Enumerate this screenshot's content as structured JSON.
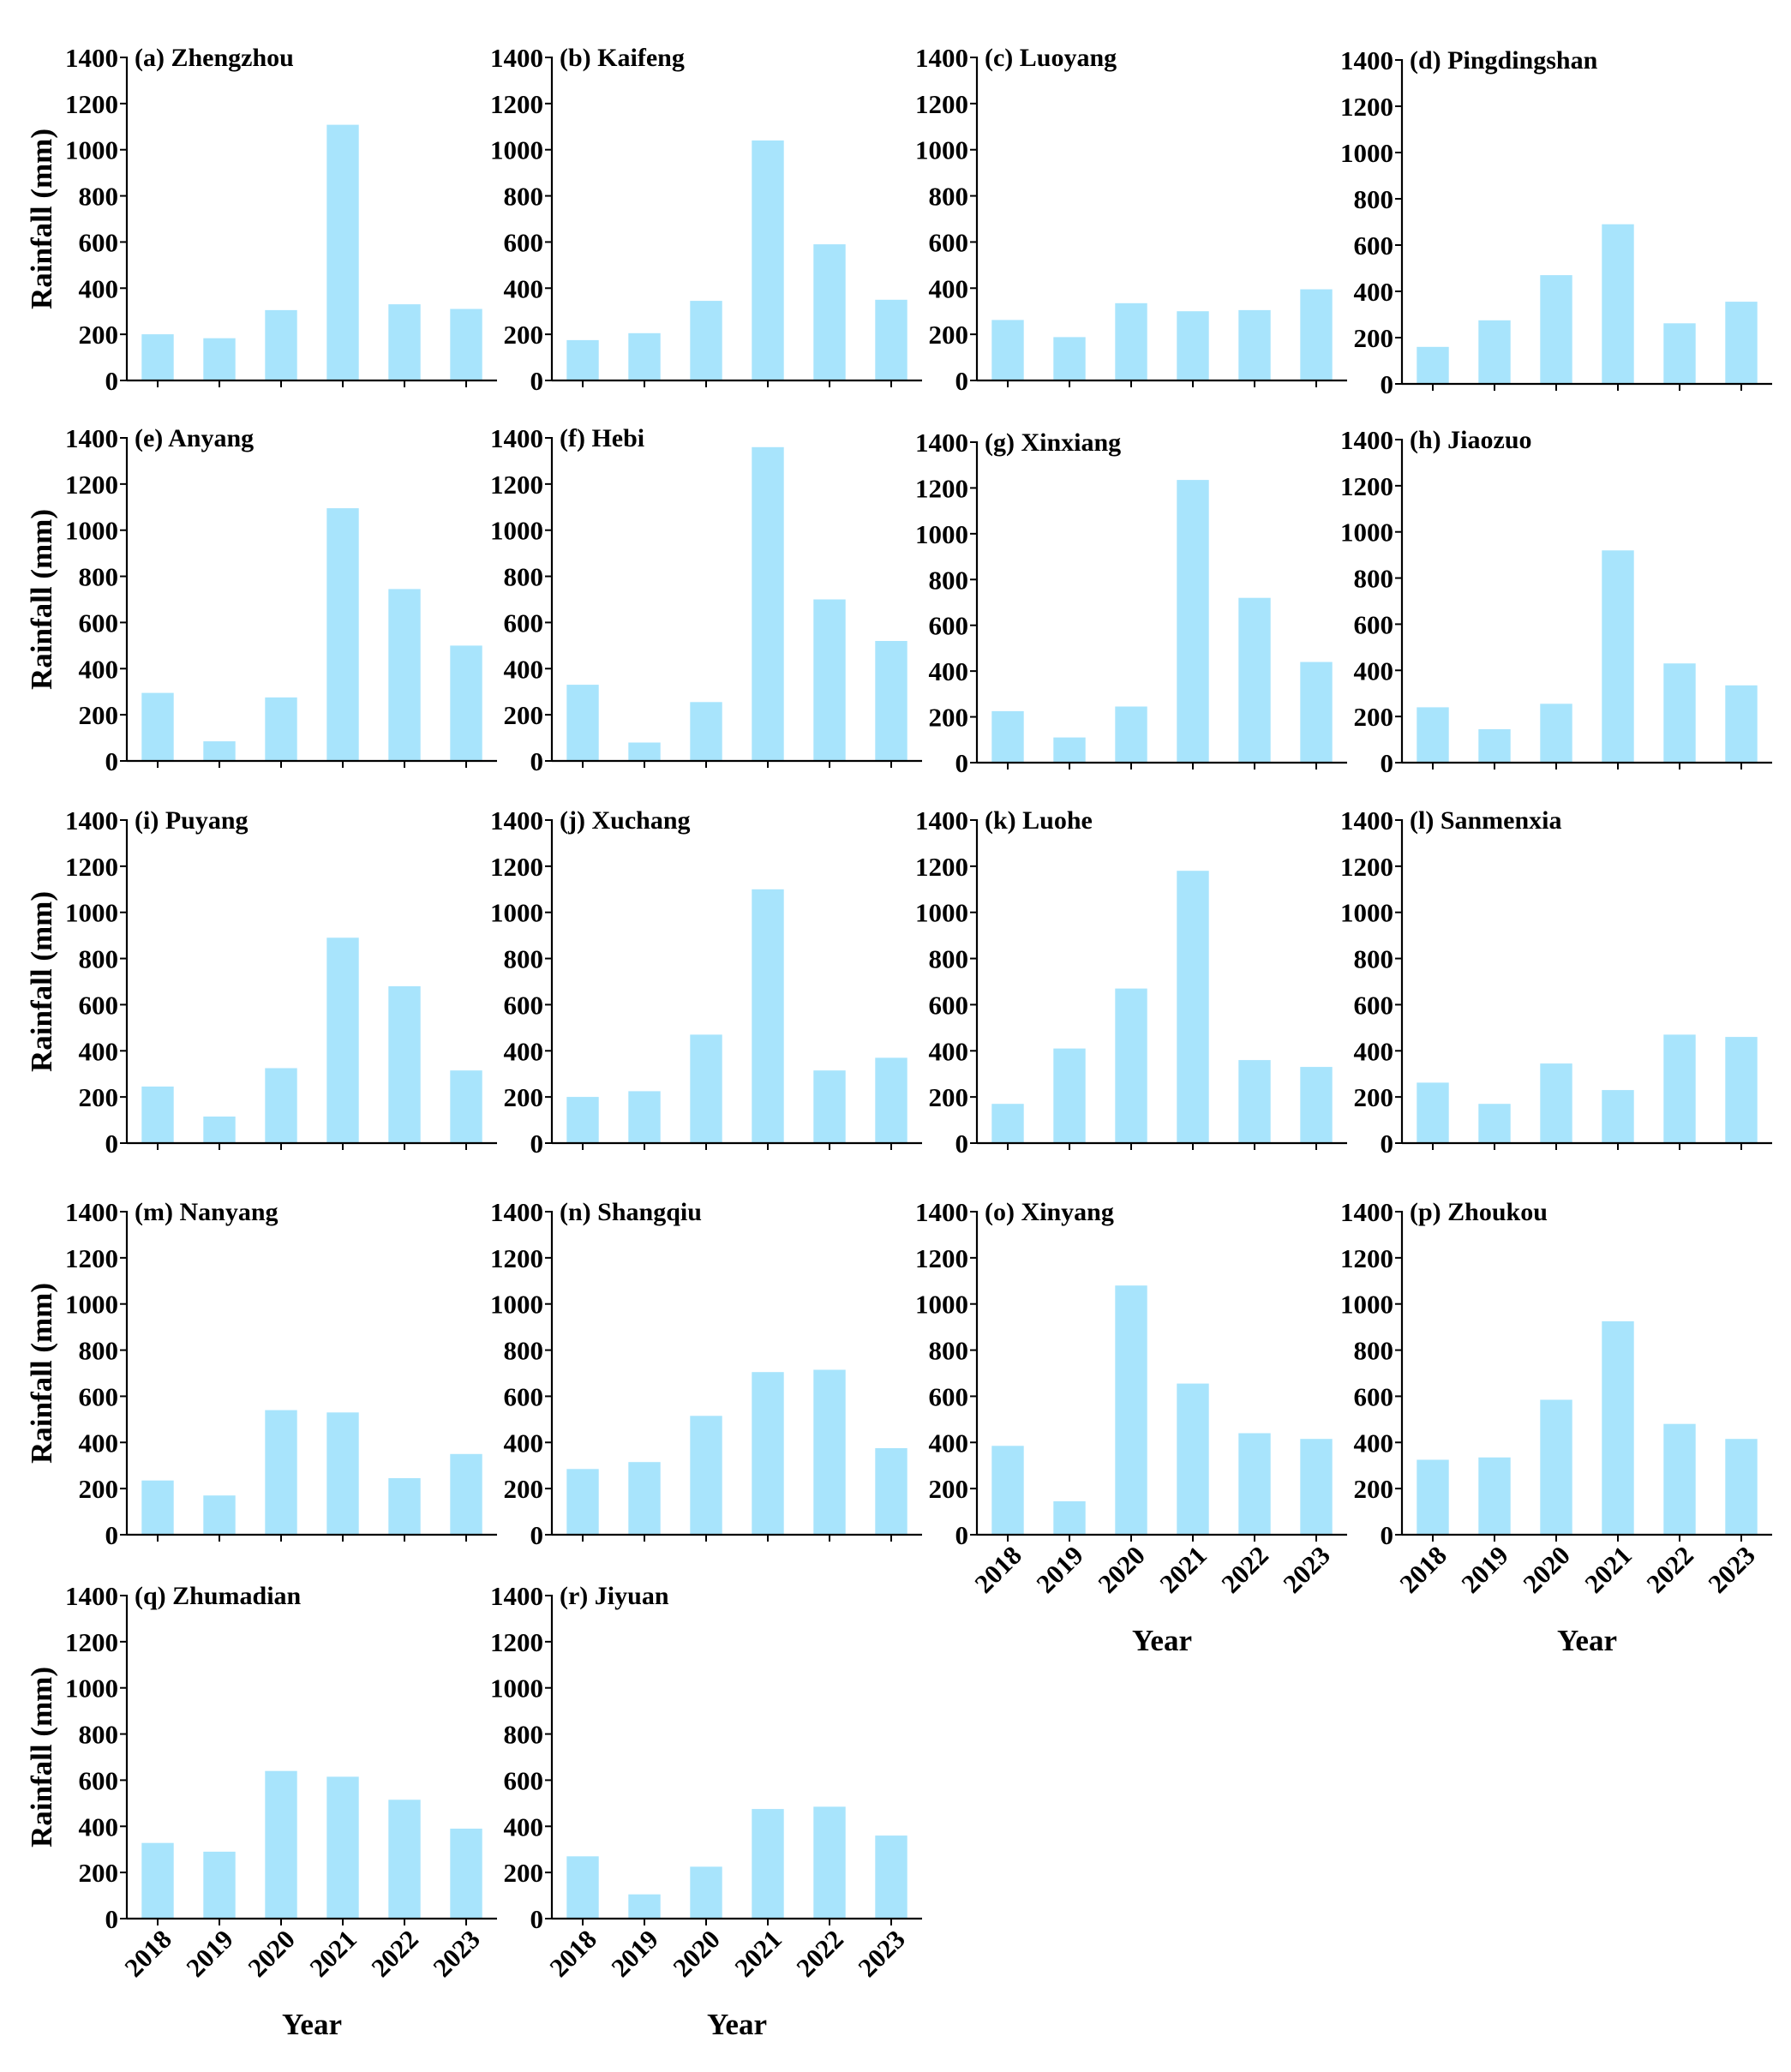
{
  "figure": {
    "ylabel": "Rainfall (mm)",
    "xlabel": "Year",
    "bar_color": "#a8e4fc",
    "axis_color": "#000000"
  },
  "chart_data": [
    {
      "type": "bar",
      "title": "(a) Zhengzhou",
      "categories": [
        "2018",
        "2019",
        "2020",
        "2021",
        "2022",
        "2023"
      ],
      "values": [
        200,
        183,
        305,
        1108,
        330,
        310
      ],
      "ylim": [
        0,
        1400
      ],
      "yticks": [
        0,
        200,
        400,
        600,
        800,
        1000,
        1200,
        1400
      ],
      "ylabel": "Rainfall (mm)",
      "xlabel": ""
    },
    {
      "type": "bar",
      "title": "(b) Kaifeng",
      "categories": [
        "2018",
        "2019",
        "2020",
        "2021",
        "2022",
        "2023"
      ],
      "values": [
        175,
        205,
        345,
        1040,
        590,
        350
      ],
      "ylim": [
        0,
        1400
      ],
      "yticks": [
        0,
        200,
        400,
        600,
        800,
        1000,
        1200,
        1400
      ],
      "ylabel": "",
      "xlabel": ""
    },
    {
      "type": "bar",
      "title": "(c) Luoyang",
      "categories": [
        "2018",
        "2019",
        "2020",
        "2021",
        "2022",
        "2023"
      ],
      "values": [
        262,
        188,
        335,
        300,
        305,
        395
      ],
      "ylim": [
        0,
        1400
      ],
      "yticks": [
        0,
        200,
        400,
        600,
        800,
        1000,
        1200,
        1400
      ],
      "ylabel": "",
      "xlabel": ""
    },
    {
      "type": "bar",
      "title": "(d) Pingdingshan",
      "categories": [
        "2018",
        "2019",
        "2020",
        "2021",
        "2022",
        "2023"
      ],
      "values": [
        160,
        275,
        470,
        690,
        262,
        355
      ],
      "ylim": [
        0,
        1400
      ],
      "yticks": [
        0,
        200,
        400,
        600,
        800,
        1000,
        1200,
        1400
      ],
      "ylabel": "",
      "xlabel": ""
    },
    {
      "type": "bar",
      "title": "(e) Anyang",
      "categories": [
        "2018",
        "2019",
        "2020",
        "2021",
        "2022",
        "2023"
      ],
      "values": [
        295,
        85,
        275,
        1095,
        745,
        500
      ],
      "ylim": [
        0,
        1400
      ],
      "yticks": [
        0,
        200,
        400,
        600,
        800,
        1000,
        1200,
        1400
      ],
      "ylabel": "Rainfall (mm)",
      "xlabel": ""
    },
    {
      "type": "bar",
      "title": "(f) Hebi",
      "categories": [
        "2018",
        "2019",
        "2020",
        "2021",
        "2022",
        "2023"
      ],
      "values": [
        330,
        80,
        255,
        1360,
        700,
        520
      ],
      "ylim": [
        0,
        1400
      ],
      "yticks": [
        0,
        200,
        400,
        600,
        800,
        1000,
        1200,
        1400
      ],
      "ylabel": "",
      "xlabel": ""
    },
    {
      "type": "bar",
      "title": "(g) Xinxiang",
      "categories": [
        "2018",
        "2019",
        "2020",
        "2021",
        "2022",
        "2023"
      ],
      "values": [
        225,
        110,
        245,
        1235,
        720,
        440
      ],
      "ylim": [
        0,
        1400
      ],
      "yticks": [
        0,
        200,
        400,
        600,
        800,
        1000,
        1200,
        1400
      ],
      "ylabel": "",
      "xlabel": ""
    },
    {
      "type": "bar",
      "title": "(h) Jiaozuo",
      "categories": [
        "2018",
        "2019",
        "2020",
        "2021",
        "2022",
        "2023"
      ],
      "values": [
        240,
        145,
        255,
        920,
        430,
        335
      ],
      "ylim": [
        0,
        1400
      ],
      "yticks": [
        0,
        200,
        400,
        600,
        800,
        1000,
        1200,
        1400
      ],
      "ylabel": "",
      "xlabel": ""
    },
    {
      "type": "bar",
      "title": "(i) Puyang",
      "categories": [
        "2018",
        "2019",
        "2020",
        "2021",
        "2022",
        "2023"
      ],
      "values": [
        245,
        115,
        325,
        890,
        680,
        315
      ],
      "ylim": [
        0,
        1400
      ],
      "yticks": [
        0,
        200,
        400,
        600,
        800,
        1000,
        1200,
        1400
      ],
      "ylabel": "Rainfall (mm)",
      "xlabel": ""
    },
    {
      "type": "bar",
      "title": "(j) Xuchang",
      "categories": [
        "2018",
        "2019",
        "2020",
        "2021",
        "2022",
        "2023"
      ],
      "values": [
        200,
        225,
        470,
        1100,
        315,
        370
      ],
      "ylim": [
        0,
        1400
      ],
      "yticks": [
        0,
        200,
        400,
        600,
        800,
        1000,
        1200,
        1400
      ],
      "ylabel": "",
      "xlabel": ""
    },
    {
      "type": "bar",
      "title": "(k) Luohe",
      "categories": [
        "2018",
        "2019",
        "2020",
        "2021",
        "2022",
        "2023"
      ],
      "values": [
        170,
        410,
        670,
        1180,
        360,
        330
      ],
      "ylim": [
        0,
        1400
      ],
      "yticks": [
        0,
        200,
        400,
        600,
        800,
        1000,
        1200,
        1400
      ],
      "ylabel": "",
      "xlabel": ""
    },
    {
      "type": "bar",
      "title": "(l) Sanmenxia",
      "categories": [
        "2018",
        "2019",
        "2020",
        "2021",
        "2022",
        "2023"
      ],
      "values": [
        262,
        170,
        345,
        230,
        470,
        460
      ],
      "ylim": [
        0,
        1400
      ],
      "yticks": [
        0,
        200,
        400,
        600,
        800,
        1000,
        1200,
        1400
      ],
      "ylabel": "",
      "xlabel": ""
    },
    {
      "type": "bar",
      "title": "(m) Nanyang",
      "categories": [
        "2018",
        "2019",
        "2020",
        "2021",
        "2022",
        "2023"
      ],
      "values": [
        235,
        170,
        540,
        530,
        245,
        350
      ],
      "ylim": [
        0,
        1400
      ],
      "yticks": [
        0,
        200,
        400,
        600,
        800,
        1000,
        1200,
        1400
      ],
      "ylabel": "Rainfall (mm)",
      "xlabel": ""
    },
    {
      "type": "bar",
      "title": "(n) Shangqiu",
      "categories": [
        "2018",
        "2019",
        "2020",
        "2021",
        "2022",
        "2023"
      ],
      "values": [
        285,
        315,
        515,
        705,
        715,
        375
      ],
      "ylim": [
        0,
        1400
      ],
      "yticks": [
        0,
        200,
        400,
        600,
        800,
        1000,
        1200,
        1400
      ],
      "ylabel": "",
      "xlabel": ""
    },
    {
      "type": "bar",
      "title": "(o) Xinyang",
      "categories": [
        "2018",
        "2019",
        "2020",
        "2021",
        "2022",
        "2023"
      ],
      "values": [
        385,
        145,
        1080,
        655,
        440,
        415
      ],
      "ylim": [
        0,
        1400
      ],
      "yticks": [
        0,
        200,
        400,
        600,
        800,
        1000,
        1200,
        1400
      ],
      "ylabel": "",
      "xlabel": "Year"
    },
    {
      "type": "bar",
      "title": "(p) Zhoukou",
      "categories": [
        "2018",
        "2019",
        "2020",
        "2021",
        "2022",
        "2023"
      ],
      "values": [
        325,
        335,
        585,
        925,
        480,
        415
      ],
      "ylim": [
        0,
        1400
      ],
      "yticks": [
        0,
        200,
        400,
        600,
        800,
        1000,
        1200,
        1400
      ],
      "ylabel": "",
      "xlabel": "Year"
    },
    {
      "type": "bar",
      "title": "(q) Zhumadian",
      "categories": [
        "2018",
        "2019",
        "2020",
        "2021",
        "2022",
        "2023"
      ],
      "values": [
        328,
        290,
        640,
        615,
        515,
        390
      ],
      "ylim": [
        0,
        1400
      ],
      "yticks": [
        0,
        200,
        400,
        600,
        800,
        1000,
        1200,
        1400
      ],
      "ylabel": "Rainfall (mm)",
      "xlabel": "Year"
    },
    {
      "type": "bar",
      "title": "(r) Jiyuan",
      "categories": [
        "2018",
        "2019",
        "2020",
        "2021",
        "2022",
        "2023"
      ],
      "values": [
        270,
        105,
        225,
        475,
        485,
        360
      ],
      "ylim": [
        0,
        1400
      ],
      "yticks": [
        0,
        200,
        400,
        600,
        800,
        1000,
        1200,
        1400
      ],
      "ylabel": "",
      "xlabel": "Year"
    }
  ]
}
